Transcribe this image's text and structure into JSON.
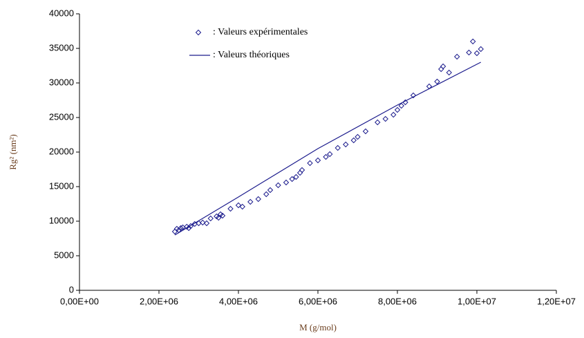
{
  "chart_data": {
    "type": "scatter",
    "xlabel": "M (g/mol)",
    "ylabel": "Rg² (nm²)",
    "xlim": [
      0,
      12000000
    ],
    "ylim": [
      0,
      40000
    ],
    "xticks": [
      {
        "value": 0,
        "label": "0,00E+00"
      },
      {
        "value": 2000000,
        "label": "2,00E+06"
      },
      {
        "value": 4000000,
        "label": "4,00E+06"
      },
      {
        "value": 6000000,
        "label": "6,00E+06"
      },
      {
        "value": 8000000,
        "label": "8,00E+06"
      },
      {
        "value": 10000000,
        "label": "1,00E+07"
      },
      {
        "value": 12000000,
        "label": "1,20E+07"
      }
    ],
    "yticks": [
      0,
      5000,
      10000,
      15000,
      20000,
      25000,
      30000,
      35000,
      40000
    ],
    "grid": false,
    "series": [
      {
        "name": ": Valeurs expérimentales",
        "style": "markers",
        "color": "#1a1a8c",
        "x": [
          2400000,
          2450000,
          2500000,
          2550000,
          2600000,
          2700000,
          2750000,
          2800000,
          2900000,
          3000000,
          3100000,
          3200000,
          3300000,
          3450000,
          3500000,
          3550000,
          3600000,
          3800000,
          4000000,
          4100000,
          4300000,
          4500000,
          4700000,
          4800000,
          5000000,
          5200000,
          5350000,
          5450000,
          5550000,
          5600000,
          5800000,
          6000000,
          6200000,
          6300000,
          6500000,
          6700000,
          6900000,
          7000000,
          7200000,
          7500000,
          7700000,
          7900000,
          8000000,
          8100000,
          8200000,
          8400000,
          8800000,
          9000000,
          9100000,
          9150000,
          9300000,
          9500000,
          9800000,
          9900000,
          10000000,
          10100000
        ],
        "values": [
          8500,
          8900,
          8700,
          9000,
          9100,
          9200,
          9000,
          9300,
          9600,
          9700,
          9800,
          9700,
          10400,
          10700,
          10500,
          11000,
          10800,
          11800,
          12300,
          12100,
          12800,
          13200,
          13900,
          14500,
          15200,
          15600,
          16100,
          16400,
          17000,
          17400,
          18400,
          18800,
          19300,
          19700,
          20600,
          21100,
          21700,
          22200,
          23000,
          24300,
          24800,
          25400,
          26100,
          26700,
          27200,
          28200,
          29500,
          30200,
          32000,
          32400,
          31500,
          33800,
          34400,
          36000,
          34300,
          34900
        ]
      },
      {
        "name": ": Valeurs théoriques",
        "style": "line",
        "color": "#1a1a8c",
        "x": [
          2400000,
          4000000,
          6000000,
          8000000,
          10100000
        ],
        "values": [
          8000,
          13500,
          20500,
          26800,
          33000
        ]
      }
    ]
  }
}
